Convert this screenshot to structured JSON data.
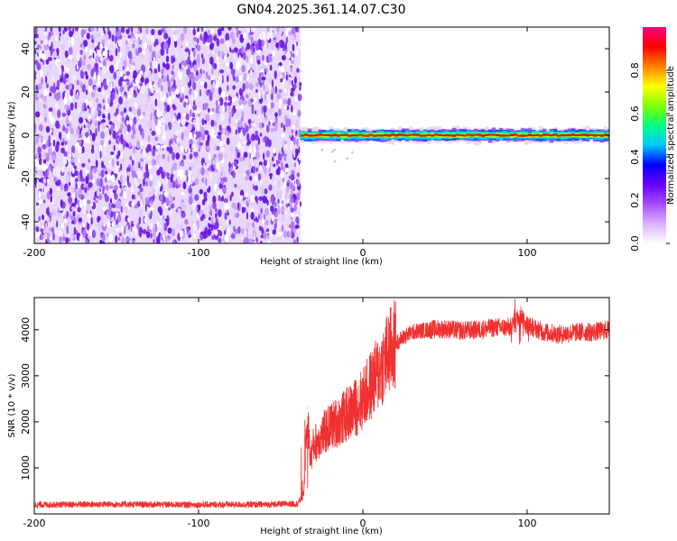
{
  "title": "GN04.2025.361.14.07.C30",
  "chart_data": [
    {
      "type": "heatmap",
      "xlabel": "Height of straight line (km)",
      "ylabel": "Frequency (Hz)",
      "xlim": [
        -200,
        150
      ],
      "ylim": [
        -50,
        50
      ],
      "x_ticks": [
        -200,
        -100,
        0,
        100
      ],
      "y_ticks": [
        -40,
        -20,
        0,
        20,
        40
      ],
      "noise_region_x": [
        -200,
        -38
      ],
      "signal_band_x": [
        -38,
        150
      ],
      "signal_center_hz": 0,
      "colorbar": {
        "label": "Normalized spectral amplitude",
        "range": [
          0,
          1
        ],
        "ticks": [
          "0.0",
          "0.2",
          "0.4",
          "0.6",
          "0.8"
        ],
        "colormap": [
          "#ffffff",
          "#d9b3ff",
          "#a64dff",
          "#6a00ff",
          "#0000ff",
          "#00c8ff",
          "#00ff80",
          "#80ff00",
          "#ffff00",
          "#ff8000",
          "#ff0000",
          "#ff0080"
        ]
      }
    },
    {
      "type": "line",
      "xlabel": "Height of straight line (km)",
      "ylabel": "SNR (10 * v/v)",
      "xlim": [
        -200,
        150
      ],
      "ylim": [
        0,
        4700
      ],
      "x_ticks": [
        -200,
        -100,
        0,
        100
      ],
      "y_ticks": [
        1000,
        2000,
        3000,
        4000
      ],
      "line_color": "#f03030",
      "series": [
        {
          "x": [
            -200,
            -150,
            -100,
            -60,
            -40,
            -36,
            -34,
            -32,
            -30,
            -25,
            -20,
            -15,
            -10,
            -5,
            0,
            5,
            10,
            15,
            20,
            25,
            30,
            40,
            50,
            60,
            70,
            80,
            90,
            96,
            100,
            110,
            120,
            130,
            140,
            150
          ],
          "values": [
            200,
            210,
            200,
            205,
            220,
            400,
            2300,
            1200,
            1500,
            1700,
            1900,
            2000,
            2150,
            2300,
            2500,
            2800,
            3100,
            3450,
            3700,
            3850,
            3950,
            4000,
            4020,
            3980,
            4000,
            4050,
            4050,
            4350,
            4100,
            3950,
            3900,
            3950,
            3950,
            4000
          ]
        }
      ]
    }
  ]
}
